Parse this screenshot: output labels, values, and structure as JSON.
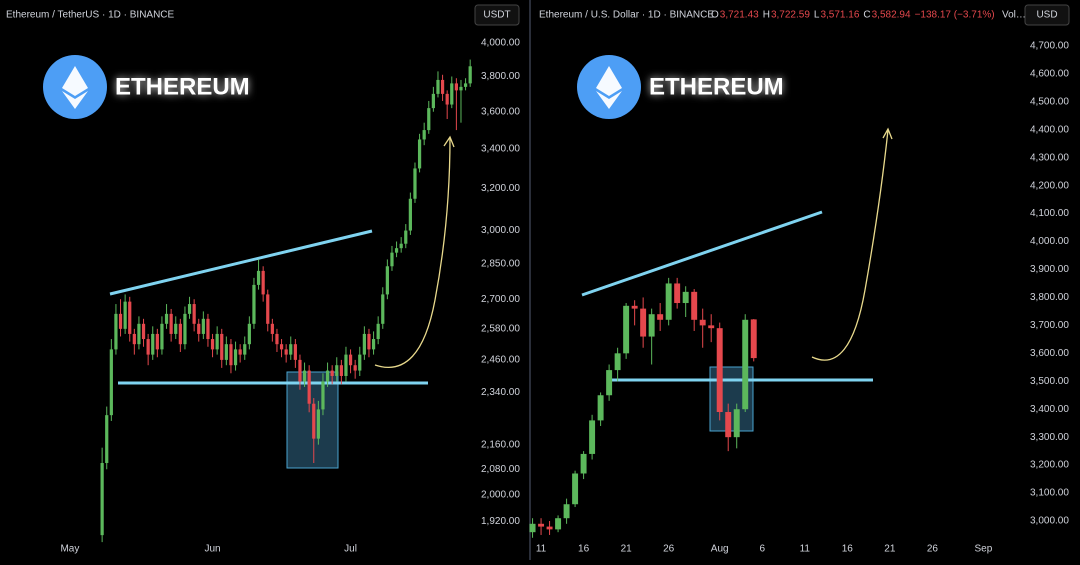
{
  "chart_data": [
    {
      "type": "candlestick",
      "log_scale": true,
      "title": "Ethereum / TetherUS · 1D · BINANCE",
      "currency": "USDT",
      "brand": "ETHEREUM",
      "up_color": "#5cb85c",
      "down_color": "#e5484d",
      "xlim": [
        -15.2,
        88.7
      ],
      "xticks": [
        {
          "value": 0,
          "label": "May"
        },
        {
          "value": 31,
          "label": "Jun"
        },
        {
          "value": 61,
          "label": "Jul"
        }
      ],
      "ylim": [
        1866,
        4081
      ],
      "yticks": [
        {
          "value": 1920,
          "label": "1,920.00"
        },
        {
          "value": 2000,
          "label": "2,000.00"
        },
        {
          "value": 2080,
          "label": "2,080.00"
        },
        {
          "value": 2160,
          "label": "2,160.00"
        },
        {
          "value": 2340,
          "label": "2,340.00"
        },
        {
          "value": 2460,
          "label": "2,460.00"
        },
        {
          "value": 2580,
          "label": "2,580.00"
        },
        {
          "value": 2700,
          "label": "2,700.00"
        },
        {
          "value": 2850,
          "label": "2,850.00"
        },
        {
          "value": 3000,
          "label": "3,000.00"
        },
        {
          "value": 3200,
          "label": "3,200.00"
        },
        {
          "value": 3400,
          "label": "3,400.00"
        },
        {
          "value": 3600,
          "label": "3,600.00"
        },
        {
          "value": 3800,
          "label": "3,800.00"
        },
        {
          "value": 4000,
          "label": "4,000.00"
        }
      ],
      "candles": [
        [
          7,
          1880,
          2150,
          1860,
          2100
        ],
        [
          8,
          2100,
          2290,
          2080,
          2260
        ],
        [
          9,
          2260,
          2540,
          2240,
          2500
        ],
        [
          10,
          2500,
          2680,
          2480,
          2640
        ],
        [
          11,
          2640,
          2700,
          2550,
          2580
        ],
        [
          12,
          2580,
          2720,
          2560,
          2690
        ],
        [
          13,
          2690,
          2710,
          2530,
          2560
        ],
        [
          14,
          2560,
          2580,
          2480,
          2520
        ],
        [
          15,
          2520,
          2630,
          2500,
          2600
        ],
        [
          16,
          2600,
          2620,
          2510,
          2540
        ],
        [
          17,
          2540,
          2560,
          2440,
          2480
        ],
        [
          18,
          2480,
          2590,
          2460,
          2560
        ],
        [
          19,
          2560,
          2580,
          2470,
          2500
        ],
        [
          20,
          2500,
          2630,
          2480,
          2600
        ],
        [
          21,
          2600,
          2680,
          2580,
          2640
        ],
        [
          22,
          2640,
          2660,
          2530,
          2560
        ],
        [
          23,
          2560,
          2630,
          2540,
          2600
        ],
        [
          24,
          2600,
          2620,
          2490,
          2520
        ],
        [
          25,
          2520,
          2670,
          2500,
          2640
        ],
        [
          26,
          2640,
          2710,
          2620,
          2680
        ],
        [
          27,
          2680,
          2700,
          2570,
          2600
        ],
        [
          28,
          2600,
          2620,
          2530,
          2560
        ],
        [
          29,
          2560,
          2650,
          2540,
          2620
        ],
        [
          30,
          2620,
          2640,
          2510,
          2540
        ],
        [
          31,
          2540,
          2560,
          2470,
          2500
        ],
        [
          32,
          2500,
          2590,
          2480,
          2560
        ],
        [
          33,
          2560,
          2580,
          2430,
          2460
        ],
        [
          34,
          2460,
          2550,
          2440,
          2520
        ],
        [
          35,
          2520,
          2540,
          2410,
          2440
        ],
        [
          36,
          2440,
          2530,
          2420,
          2500
        ],
        [
          37,
          2500,
          2520,
          2450,
          2480
        ],
        [
          38,
          2480,
          2550,
          2460,
          2520
        ],
        [
          39,
          2520,
          2630,
          2500,
          2600
        ],
        [
          40,
          2600,
          2790,
          2580,
          2760
        ],
        [
          41,
          2760,
          2870,
          2740,
          2820
        ],
        [
          42,
          2820,
          2840,
          2690,
          2720
        ],
        [
          43,
          2720,
          2740,
          2570,
          2600
        ],
        [
          44,
          2600,
          2620,
          2530,
          2560
        ],
        [
          45,
          2560,
          2580,
          2490,
          2520
        ],
        [
          46,
          2520,
          2540,
          2470,
          2500
        ],
        [
          47,
          2500,
          2520,
          2450,
          2480
        ],
        [
          48,
          2480,
          2550,
          2460,
          2520
        ],
        [
          49,
          2520,
          2540,
          2430,
          2460
        ],
        [
          50,
          2460,
          2480,
          2350,
          2380
        ],
        [
          51,
          2380,
          2450,
          2360,
          2420
        ],
        [
          52,
          2420,
          2440,
          2270,
          2300
        ],
        [
          53,
          2300,
          2320,
          2100,
          2180
        ],
        [
          54,
          2180,
          2310,
          2160,
          2280
        ],
        [
          55,
          2280,
          2410,
          2260,
          2380
        ],
        [
          56,
          2380,
          2450,
          2360,
          2420
        ],
        [
          57,
          2420,
          2440,
          2370,
          2400
        ],
        [
          58,
          2400,
          2470,
          2380,
          2440
        ],
        [
          59,
          2440,
          2460,
          2370,
          2400
        ],
        [
          60,
          2400,
          2510,
          2380,
          2480
        ],
        [
          61,
          2480,
          2500,
          2410,
          2440
        ],
        [
          62,
          2440,
          2460,
          2390,
          2420
        ],
        [
          63,
          2420,
          2510,
          2400,
          2480
        ],
        [
          64,
          2480,
          2590,
          2460,
          2560
        ],
        [
          65,
          2560,
          2580,
          2470,
          2500
        ],
        [
          66,
          2500,
          2570,
          2480,
          2540
        ],
        [
          67,
          2540,
          2630,
          2520,
          2600
        ],
        [
          68,
          2600,
          2750,
          2580,
          2720
        ],
        [
          69,
          2720,
          2870,
          2700,
          2840
        ],
        [
          70,
          2840,
          2930,
          2820,
          2900
        ],
        [
          71,
          2900,
          2950,
          2880,
          2920
        ],
        [
          72,
          2920,
          2970,
          2900,
          2940
        ],
        [
          73,
          2940,
          3030,
          2920,
          3000
        ],
        [
          74,
          3000,
          3180,
          2980,
          3150
        ],
        [
          75,
          3150,
          3330,
          3130,
          3300
        ],
        [
          76,
          3300,
          3480,
          3280,
          3450
        ],
        [
          77,
          3450,
          3540,
          3420,
          3500
        ],
        [
          78,
          3500,
          3660,
          3480,
          3620
        ],
        [
          79,
          3620,
          3740,
          3600,
          3700
        ],
        [
          80,
          3700,
          3830,
          3680,
          3780
        ],
        [
          81,
          3780,
          3810,
          3660,
          3700
        ],
        [
          82,
          3700,
          3720,
          3560,
          3640
        ],
        [
          83,
          3640,
          3800,
          3620,
          3760
        ],
        [
          84,
          3760,
          3790,
          3500,
          3720
        ],
        [
          85,
          3720,
          3780,
          3540,
          3740
        ],
        [
          86,
          3740,
          3790,
          3720,
          3760
        ],
        [
          87,
          3760,
          3900,
          3740,
          3860
        ]
      ]
    },
    {
      "type": "candlestick",
      "log_scale": false,
      "title": "Ethereum / U.S. Dollar · 1D · BINANCE",
      "currency": "USD",
      "brand": "ETHEREUM",
      "ohlc": [
        {
          "label": "O",
          "value": "3,721.43"
        },
        {
          "label": "H",
          "value": "3,722.59"
        },
        {
          "label": "L",
          "value": "3,571.16"
        },
        {
          "label": "C",
          "value": "3,582.94"
        }
      ],
      "change": "−138.17 (−3.71%)",
      "volume_label": "Vol…",
      "up_color": "#5cb85c",
      "down_color": "#e5484d",
      "xlim": [
        9.7,
        67.3
      ],
      "xticks": [
        11,
        16,
        21,
        26,
        {
          "value": 32,
          "label": "Aug"
        },
        {
          "value": 37,
          "label": "6"
        },
        {
          "value": 42,
          "label": "11"
        },
        {
          "value": 47,
          "label": "16"
        },
        {
          "value": 52,
          "label": "21"
        },
        {
          "value": 57,
          "label": "26"
        },
        {
          "value": 63,
          "label": "Sep"
        }
      ],
      "ylim": [
        2932,
        4757
      ],
      "yticks": [
        {
          "value": 3000,
          "label": "3,000.00"
        },
        {
          "value": 3100,
          "label": "3,100.00"
        },
        {
          "value": 3200,
          "label": "3,200.00"
        },
        {
          "value": 3300,
          "label": "3,300.00"
        },
        {
          "value": 3400,
          "label": "3,400.00"
        },
        {
          "value": 3500,
          "label": "3,500.00"
        },
        {
          "value": 3600,
          "label": "3,600.00"
        },
        {
          "value": 3700,
          "label": "3,700.00"
        },
        {
          "value": 3800,
          "label": "3,800.00"
        },
        {
          "value": 3900,
          "label": "3,900.00"
        },
        {
          "value": 4000,
          "label": "4,000.00"
        },
        {
          "value": 4100,
          "label": "4,100.00"
        },
        {
          "value": 4200,
          "label": "4,200.00"
        },
        {
          "value": 4300,
          "label": "4,300.00"
        },
        {
          "value": 4400,
          "label": "4,400.00"
        },
        {
          "value": 4500,
          "label": "4,500.00"
        },
        {
          "value": 4600,
          "label": "4,600.00"
        },
        {
          "value": 4700,
          "label": "4,700.00"
        }
      ],
      "candles": [
        [
          10,
          2960,
          3010,
          2940,
          2990
        ],
        [
          11,
          2990,
          3010,
          2950,
          2980
        ],
        [
          12,
          2980,
          3000,
          2950,
          2970
        ],
        [
          13,
          2970,
          3020,
          2960,
          3010
        ],
        [
          14,
          3010,
          3080,
          2990,
          3060
        ],
        [
          15,
          3060,
          3180,
          3050,
          3170
        ],
        [
          16,
          3170,
          3250,
          3150,
          3240
        ],
        [
          17,
          3240,
          3380,
          3220,
          3360
        ],
        [
          18,
          3360,
          3460,
          3340,
          3450
        ],
        [
          19,
          3450,
          3560,
          3430,
          3540
        ],
        [
          20,
          3540,
          3620,
          3500,
          3600
        ],
        [
          21,
          3600,
          3780,
          3580,
          3770
        ],
        [
          22,
          3770,
          3790,
          3700,
          3760
        ],
        [
          23,
          3760,
          3800,
          3620,
          3660
        ],
        [
          24,
          3660,
          3760,
          3560,
          3740
        ],
        [
          25,
          3740,
          3780,
          3680,
          3720
        ],
        [
          26,
          3720,
          3870,
          3700,
          3850
        ],
        [
          27,
          3850,
          3870,
          3760,
          3780
        ],
        [
          28,
          3780,
          3840,
          3730,
          3820
        ],
        [
          29,
          3820,
          3830,
          3680,
          3720
        ],
        [
          30,
          3720,
          3760,
          3620,
          3700
        ],
        [
          31,
          3700,
          3740,
          3640,
          3690
        ],
        [
          32,
          3690,
          3710,
          3360,
          3390
        ],
        [
          33,
          3390,
          3420,
          3250,
          3300
        ],
        [
          34,
          3300,
          3420,
          3260,
          3400
        ],
        [
          35,
          3400,
          3740,
          3390,
          3720
        ],
        [
          36,
          3721.43,
          3722.59,
          3571.16,
          3582.94
        ]
      ]
    }
  ]
}
